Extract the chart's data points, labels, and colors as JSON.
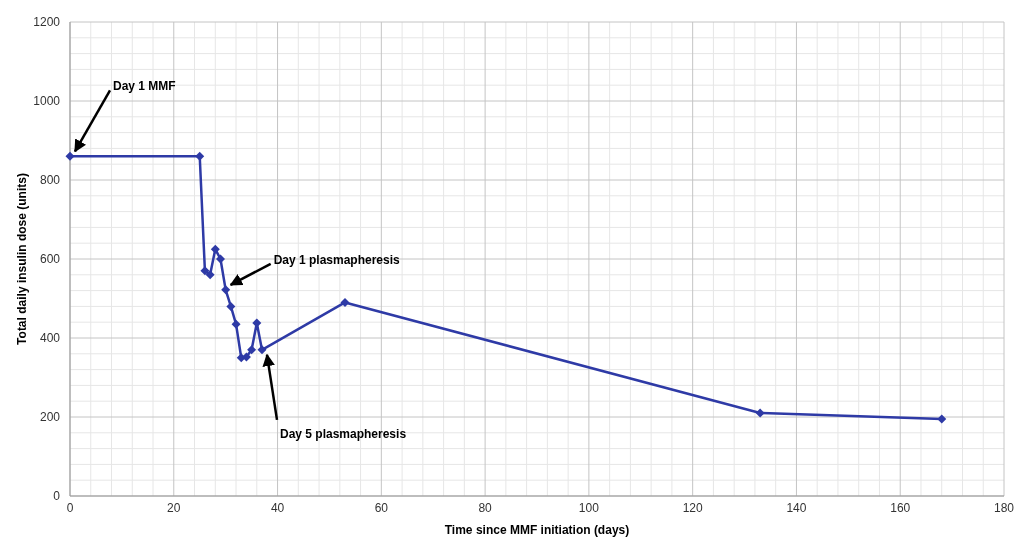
{
  "chart_data": {
    "type": "line",
    "xlabel": "Time since MMF initiation (days)",
    "ylabel": "Total daily insulin dose (units)",
    "xlim": [
      0,
      180
    ],
    "xticks": [
      0,
      20,
      40,
      60,
      80,
      100,
      120,
      140,
      160,
      180
    ],
    "ylim": [
      0,
      1200
    ],
    "yticks": [
      0,
      200,
      400,
      600,
      800,
      1000,
      1200
    ],
    "grid": true,
    "marker": "diamond",
    "line_style": "solid",
    "series": [
      {
        "color": "#2e3aa6",
        "x": [
          0,
          25,
          26,
          27,
          28,
          29,
          30,
          31,
          32,
          33,
          34,
          35,
          36,
          37,
          53,
          133,
          168
        ],
        "values": [
          860,
          860,
          570,
          560,
          625,
          600,
          522,
          480,
          435,
          350,
          352,
          370,
          438,
          370,
          490,
          210,
          195
        ]
      }
    ],
    "annotations": [
      {
        "text": "Day 1 MMF",
        "x": 0,
        "y": 860
      },
      {
        "text": "Day 1 plasmapheresis",
        "x": 30,
        "y": 522
      },
      {
        "text": "Day 5 plasmapheresis",
        "x": 37,
        "y": 370
      }
    ]
  }
}
